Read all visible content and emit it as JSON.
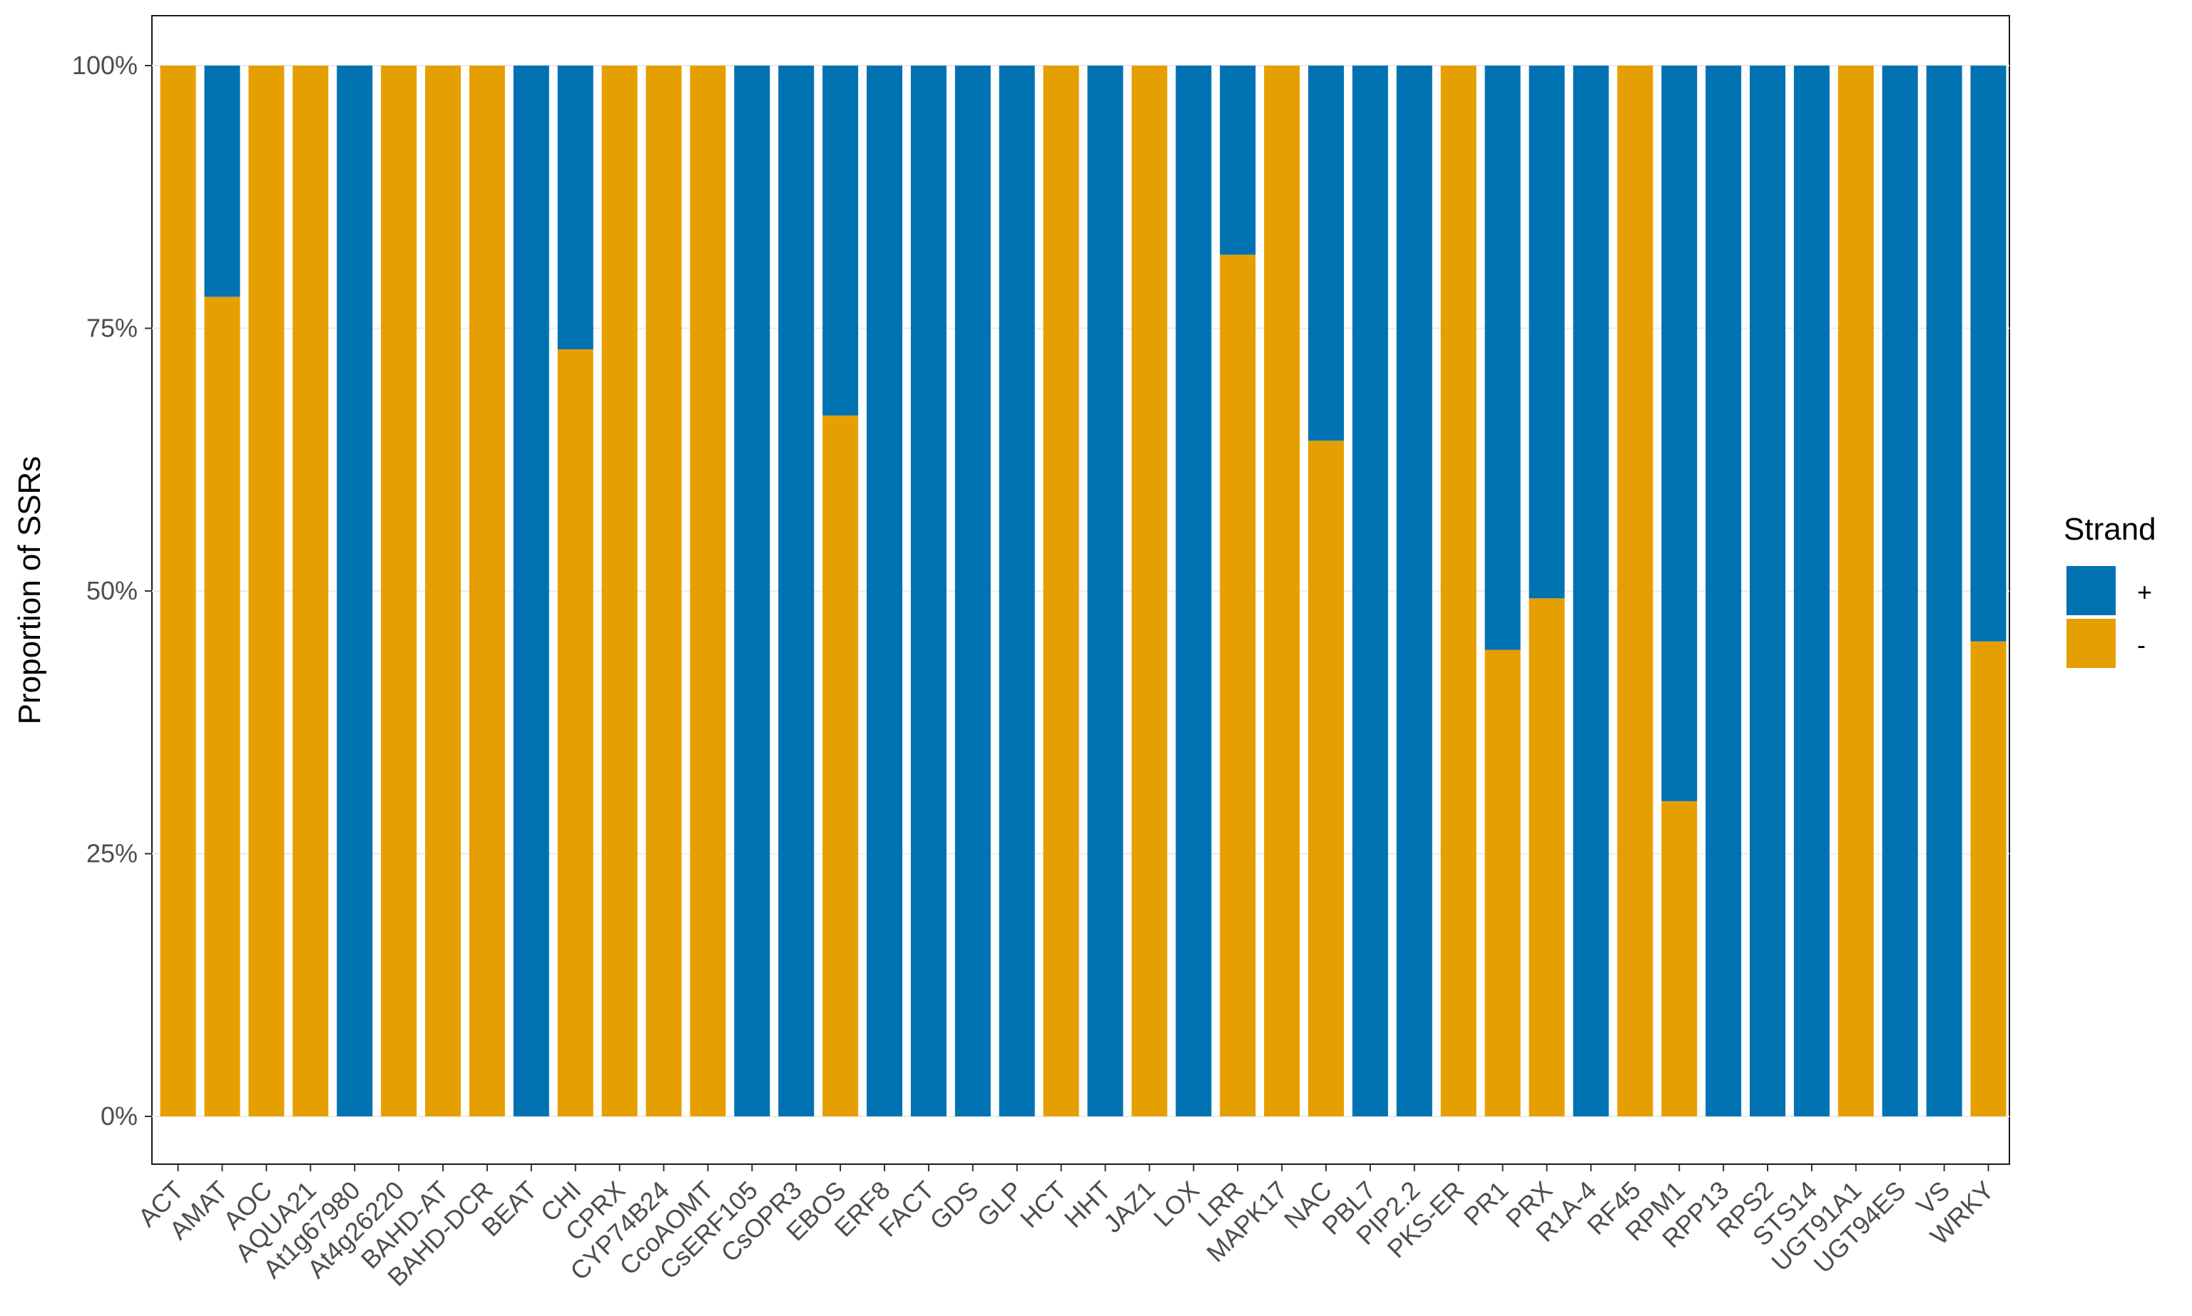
{
  "chart_data": {
    "type": "bar",
    "stacked": true,
    "normalized": true,
    "title": "",
    "xlabel": "",
    "ylabel": "Proportion of SSRs",
    "ylim": [
      0,
      1
    ],
    "yticks": [
      0,
      0.25,
      0.5,
      0.75,
      1
    ],
    "ytick_labels": [
      "0%",
      "25%",
      "50%",
      "75%",
      "100%"
    ],
    "grid": true,
    "categories": [
      "ACT",
      "AMAT",
      "AOC",
      "AQUA21",
      "At1g67980",
      "At4g26220",
      "BAHD-AT",
      "BAHD-DCR",
      "BEAT",
      "CHI",
      "CPRX",
      "CYP74B24",
      "CcoAOMT",
      "CsERF105",
      "CsOPR3",
      "EBOS",
      "ERF8",
      "FACT",
      "GDS",
      "GLP",
      "HCT",
      "HHT",
      "JAZ1",
      "LOX",
      "LRR",
      "MAPK17",
      "NAC",
      "PBL7",
      "PIP2.2",
      "PKS-ER",
      "PR1",
      "PRX",
      "R1A-4",
      "RF45",
      "RPM1",
      "RPP13",
      "RPS2",
      "STS14",
      "UGT91A1",
      "UGT94ES",
      "VS",
      "WRKY"
    ],
    "series": [
      {
        "name": "+",
        "color": "#0072B2",
        "values": [
          0,
          0.22,
          0,
          0,
          1,
          0,
          0,
          0,
          1,
          0.27,
          0,
          0,
          0,
          1,
          1,
          0.333,
          1,
          1,
          1,
          1,
          0,
          1,
          0,
          1,
          0.18,
          0,
          0.357,
          1,
          1,
          0,
          0.556,
          0.507,
          1,
          0,
          0.7,
          1,
          1,
          1,
          0,
          1,
          1,
          0.548
        ]
      },
      {
        "name": "-",
        "color": "#E69F00",
        "values": [
          1,
          0.78,
          1,
          1,
          0,
          1,
          1,
          1,
          0,
          0.73,
          1,
          1,
          1,
          0,
          0,
          0.667,
          0,
          0,
          0,
          0,
          1,
          0,
          1,
          0,
          0.82,
          1,
          0.643,
          0,
          0,
          1,
          0.444,
          0.493,
          0,
          1,
          0.3,
          0,
          0,
          0,
          1,
          0,
          0,
          0.452
        ]
      }
    ],
    "legend": {
      "title": "Strand",
      "position": "right",
      "labels": [
        "+",
        "-"
      ]
    }
  }
}
